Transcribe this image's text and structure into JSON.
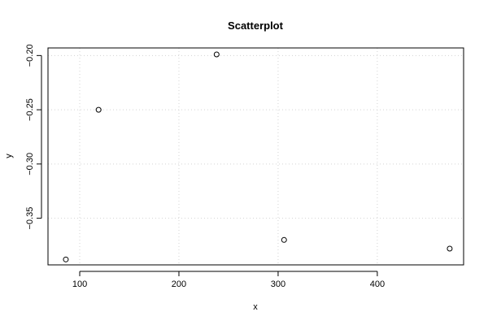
{
  "chart_data": {
    "type": "scatter",
    "title": "Scatterplot",
    "xlabel": "x",
    "ylabel": "y",
    "grid": true,
    "xlim": [
      68,
      487
    ],
    "ylim": [
      -0.393,
      -0.193
    ],
    "x_ticks": [
      100,
      200,
      300,
      400
    ],
    "x_tick_labels": [
      "100",
      "200",
      "300",
      "400"
    ],
    "y_ticks": [
      -0.35,
      -0.3,
      -0.25,
      -0.2
    ],
    "y_tick_labels": [
      "−0.35",
      "−0.30",
      "−0.25",
      "−0.20"
    ],
    "series": [
      {
        "x": [
          86,
          119,
          238,
          306,
          473
        ],
        "y": [
          -0.388,
          -0.25,
          -0.199,
          -0.37,
          -0.378
        ]
      }
    ]
  }
}
